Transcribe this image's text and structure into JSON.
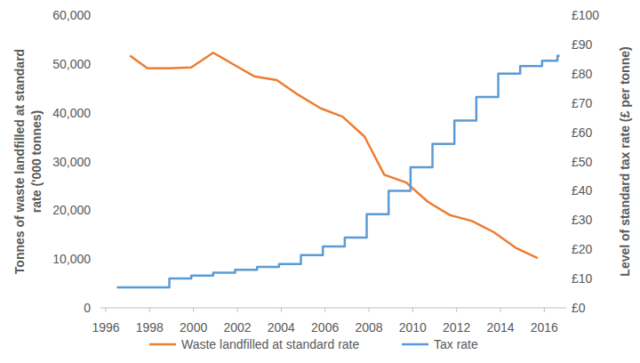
{
  "chart_data": {
    "type": "line",
    "y_label": "Tonnes of waste landfilled at standard rate ('000 tonnes)",
    "y2_label": "Level of standard tax rate (£ per tonne)",
    "xlim": [
      1996,
      2017
    ],
    "xticks": [
      1996,
      1998,
      2000,
      2002,
      2004,
      2006,
      2008,
      2010,
      2012,
      2014,
      2016
    ],
    "ylim": [
      0,
      60000
    ],
    "yticks": [
      0,
      {
        "value": 10000,
        "label": "10,000"
      },
      {
        "value": 20000,
        "label": "20,000"
      },
      {
        "value": 30000,
        "label": "30,000"
      },
      {
        "value": 40000,
        "label": "40,000"
      },
      {
        "value": 50000,
        "label": "50,000"
      },
      {
        "value": 60000,
        "label": "60,000"
      }
    ],
    "y2lim": [
      0,
      100
    ],
    "y2ticks": [
      {
        "value": 0,
        "label": "£0"
      },
      {
        "value": 10,
        "label": "£10"
      },
      {
        "value": 20,
        "label": "£20"
      },
      {
        "value": 30,
        "label": "£30"
      },
      {
        "value": 40,
        "label": "£40"
      },
      {
        "value": 50,
        "label": "£50"
      },
      {
        "value": 60,
        "label": "£60"
      },
      {
        "value": 70,
        "label": "£70"
      },
      {
        "value": 80,
        "label": "£80"
      },
      {
        "value": 90,
        "label": "£90"
      },
      {
        "value": 100,
        "label": "£100"
      }
    ],
    "grid": false,
    "legend": "bottom",
    "series": [
      {
        "name": "Waste landfilled at standard rate",
        "color": "#ed7d31",
        "line_style": "solid",
        "x": [
          1997.1,
          1997.9,
          1998.9,
          1999.9,
          2000.9,
          2001.9,
          2002.8,
          2003.8,
          2004.8,
          2005.8,
          2006.8,
          2007.8,
          2008.7,
          2009.7,
          2010.7,
          2011.7,
          2012.7,
          2013.7,
          2014.7,
          2015.7
        ],
        "values": [
          51700,
          49100,
          49100,
          49300,
          52300,
          49700,
          47400,
          46700,
          43600,
          40900,
          39200,
          35100,
          27300,
          25700,
          21700,
          19000,
          17800,
          15500,
          12300,
          10200
        ]
      },
      {
        "name": "Tax rate",
        "color": "#5b9bd5",
        "line_style": "step",
        "axis": "y2",
        "x": [
          1996.5,
          1998.9,
          1999.9,
          2000.9,
          2001.9,
          2002.9,
          2003.9,
          2004.9,
          2005.9,
          2006.9,
          2007.9,
          2008.9,
          2009.9,
          2010.9,
          2011.9,
          2012.9,
          2013.9,
          2014.9,
          2015.9,
          2016.6,
          2016.7
        ],
        "values": [
          7,
          10,
          11,
          12,
          13,
          14,
          15,
          18,
          21,
          24,
          32,
          40,
          48,
          56,
          64,
          72,
          80,
          82.6,
          84.4,
          86.1,
          86.1
        ]
      }
    ]
  }
}
